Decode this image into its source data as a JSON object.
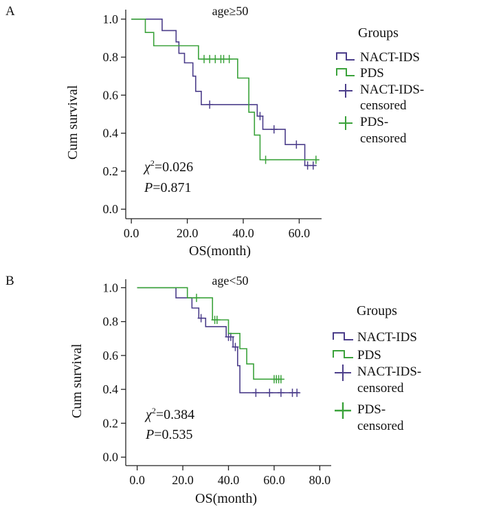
{
  "chart_data": [
    {
      "type": "line",
      "panel": "A",
      "title": "age≥50",
      "xlabel": "OS(month)",
      "ylabel": "Cum survival",
      "xlim": [
        -2,
        68
      ],
      "ylim": [
        -0.05,
        1.05
      ],
      "xticks": [
        0,
        20,
        40,
        60
      ],
      "xtick_labels": [
        "0.0",
        "20.0",
        "40.0",
        "60.0"
      ],
      "yticks": [
        0,
        0.2,
        0.4,
        0.6,
        0.8,
        1.0
      ],
      "ytick_labels": [
        "0.0",
        "0.2",
        "0.4",
        "0.6",
        "0.8",
        "1.0"
      ],
      "legend_title": "Groups",
      "legend_position": "right",
      "stats": {
        "chi_symbol": "χ",
        "chi_sup": "2",
        "chi_value": "=0.026",
        "p_symbol": "P",
        "p_value": "=0.871"
      },
      "series": [
        {
          "name": "NACT-IDS",
          "censored_label": [
            "NACT-IDS-",
            "censored"
          ],
          "color": "#4b3d8a",
          "steps": [
            [
              0,
              1.0
            ],
            [
              11,
              0.94
            ],
            [
              16,
              0.88
            ],
            [
              17,
              0.82
            ],
            [
              19,
              0.77
            ],
            [
              22,
              0.7
            ],
            [
              23,
              0.62
            ],
            [
              25,
              0.55
            ],
            [
              45,
              0.49
            ],
            [
              47,
              0.42
            ],
            [
              55,
              0.34
            ],
            [
              62,
              0.23
            ],
            [
              66,
              0.23
            ]
          ],
          "censored": [
            [
              28,
              0.55
            ],
            [
              46,
              0.49
            ],
            [
              51,
              0.42
            ],
            [
              59,
              0.34
            ],
            [
              63,
              0.23
            ],
            [
              65,
              0.23
            ]
          ]
        },
        {
          "name": "PDS",
          "censored_label": [
            "PDS-",
            "censored"
          ],
          "color": "#3aa23a",
          "steps": [
            [
              0,
              1.0
            ],
            [
              5,
              0.93
            ],
            [
              8,
              0.86
            ],
            [
              24,
              0.79
            ],
            [
              38,
              0.69
            ],
            [
              42,
              0.51
            ],
            [
              44,
              0.39
            ],
            [
              46,
              0.26
            ],
            [
              67,
              0.26
            ]
          ],
          "censored": [
            [
              26,
              0.79
            ],
            [
              28,
              0.79
            ],
            [
              30,
              0.79
            ],
            [
              32,
              0.79
            ],
            [
              33,
              0.79
            ],
            [
              35,
              0.79
            ],
            [
              48,
              0.26
            ],
            [
              66,
              0.26
            ]
          ]
        }
      ]
    },
    {
      "type": "line",
      "panel": "B",
      "title": "age<50",
      "xlabel": "OS(month)",
      "ylabel": "Cum survival",
      "xlim": [
        -5,
        85
      ],
      "ylim": [
        -0.05,
        1.05
      ],
      "xticks": [
        0,
        20,
        40,
        60,
        80
      ],
      "xtick_labels": [
        "0.0",
        "20.0",
        "40.0",
        "60.0",
        "80.0"
      ],
      "yticks": [
        0,
        0.2,
        0.4,
        0.6,
        0.8,
        1.0
      ],
      "ytick_labels": [
        "0.0",
        "0.2",
        "0.4",
        "0.6",
        "0.8",
        "1.0"
      ],
      "legend_title": "Groups",
      "legend_position": "right",
      "stats": {
        "chi_symbol": "χ",
        "chi_sup": "2",
        "chi_value": "=0.384",
        "p_symbol": "P",
        "p_value": "=0.535"
      },
      "series": [
        {
          "name": "NACT-IDS",
          "censored_label": [
            "NACT-IDS-",
            "censored"
          ],
          "color": "#4b3d8a",
          "steps": [
            [
              0,
              1.0
            ],
            [
              17,
              0.94
            ],
            [
              24,
              0.88
            ],
            [
              27,
              0.82
            ],
            [
              30,
              0.77
            ],
            [
              39,
              0.71
            ],
            [
              42,
              0.65
            ],
            [
              44,
              0.54
            ],
            [
              45,
              0.38
            ],
            [
              71,
              0.38
            ]
          ],
          "censored": [
            [
              28,
              0.82
            ],
            [
              40,
              0.71
            ],
            [
              41,
              0.71
            ],
            [
              43,
              0.65
            ],
            [
              52,
              0.38
            ],
            [
              58,
              0.38
            ],
            [
              63,
              0.38
            ],
            [
              68,
              0.38
            ],
            [
              70,
              0.38
            ]
          ]
        },
        {
          "name": "PDS",
          "censored_label": [
            "PDS-",
            "censored"
          ],
          "color": "#3aa23a",
          "steps": [
            [
              0,
              1.0
            ],
            [
              22,
              0.94
            ],
            [
              33,
              0.81
            ],
            [
              40,
              0.73
            ],
            [
              45,
              0.64
            ],
            [
              48,
              0.55
            ],
            [
              51,
              0.46
            ],
            [
              63,
              0.46
            ]
          ],
          "censored": [
            [
              26,
              0.94
            ],
            [
              34,
              0.81
            ],
            [
              35,
              0.81
            ],
            [
              60,
              0.46
            ],
            [
              61,
              0.46
            ],
            [
              62,
              0.46
            ],
            [
              63,
              0.46
            ]
          ]
        }
      ]
    }
  ]
}
